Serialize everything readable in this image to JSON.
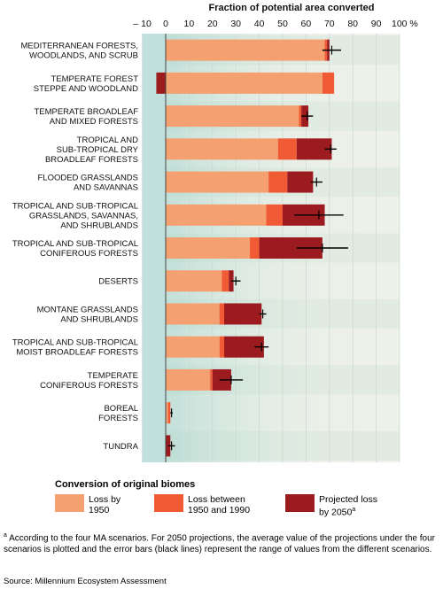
{
  "chart_data": {
    "type": "bar",
    "orientation": "horizontal-stacked",
    "title": "Fraction of potential area converted",
    "axis": {
      "ticks": [
        -10,
        0,
        10,
        20,
        30,
        40,
        50,
        60,
        70,
        80,
        90,
        100
      ],
      "tick_labels": [
        "– 10",
        "0",
        "10",
        "20",
        "30",
        "40",
        "50",
        "60",
        "70",
        "80",
        "90",
        "100 %"
      ],
      "xlim": [
        -10,
        100
      ]
    },
    "categories": [
      "MEDITERRANEAN FORESTS,\nWOODLANDS, AND SCRUB",
      "TEMPERATE FOREST\nSTEPPE AND WOODLAND",
      "TEMPERATE BROADLEAF\nAND MIXED FORESTS",
      "TROPICAL AND\nSUB-TROPICAL DRY\nBROADLEAF FORESTS",
      "FLOODED GRASSLANDS\nAND SAVANNAS",
      "TROPICAL AND SUB-TROPICAL\nGRASSLANDS, SAVANNAS,\nAND SHRUBLANDS",
      "TROPICAL AND SUB-TROPICAL\nCONIFEROUS FORESTS",
      "DESERTS",
      "MONTANE GRASSLANDS\nAND SHRUBLANDS",
      "TROPICAL AND SUB-TROPICAL\nMOIST BROADLEAF FORESTS",
      "TEMPERATE\nCONIFEROUS FORESTS",
      "BOREAL\nFORESTS",
      "TUNDRA"
    ],
    "series": [
      {
        "name": "Loss by 1950",
        "color": "#f4a070",
        "values": [
          68,
          67,
          57,
          48,
          44,
          43,
          36,
          24,
          23,
          23,
          19,
          1,
          0
        ]
      },
      {
        "name": "Loss between 1950 and 1990",
        "color": "#f05a35",
        "values": [
          1,
          5,
          1,
          8,
          8,
          7,
          4,
          3,
          2,
          2,
          1,
          1,
          0
        ]
      },
      {
        "name": "Projected loss by 2050",
        "color": "#9b1b1f",
        "values": [
          1,
          -4,
          3,
          15,
          11,
          18,
          27,
          2,
          16,
          17,
          8,
          0,
          2
        ]
      }
    ],
    "error_bars": [
      [
        67,
        75
      ],
      null,
      [
        58,
        63
      ],
      [
        68,
        73
      ],
      [
        62,
        67
      ],
      [
        55,
        76
      ],
      [
        56,
        78
      ],
      [
        28,
        32
      ],
      [
        40,
        43
      ],
      [
        38,
        44
      ],
      [
        23,
        33
      ],
      [
        2,
        3
      ],
      [
        1,
        4
      ]
    ],
    "grid": true
  },
  "legend": {
    "title": "Conversion of original biomes",
    "items": [
      {
        "label": "Loss by\n1950",
        "color": "#f4a070"
      },
      {
        "label": "Loss between\n1950 and 1990",
        "color": "#f05a35"
      },
      {
        "label": "Projected loss\nby 2050",
        "superscript": "a",
        "color": "#9b1b1f"
      }
    ]
  },
  "footnote": {
    "marker": "a",
    "text": " According to the four MA scenarios. For 2050 projections, the average value of the projections under the four scenarios is plotted and the error bars (black lines) represent the range of values from the different scenarios."
  },
  "source": "Source: Millennium Ecosystem Assessment"
}
